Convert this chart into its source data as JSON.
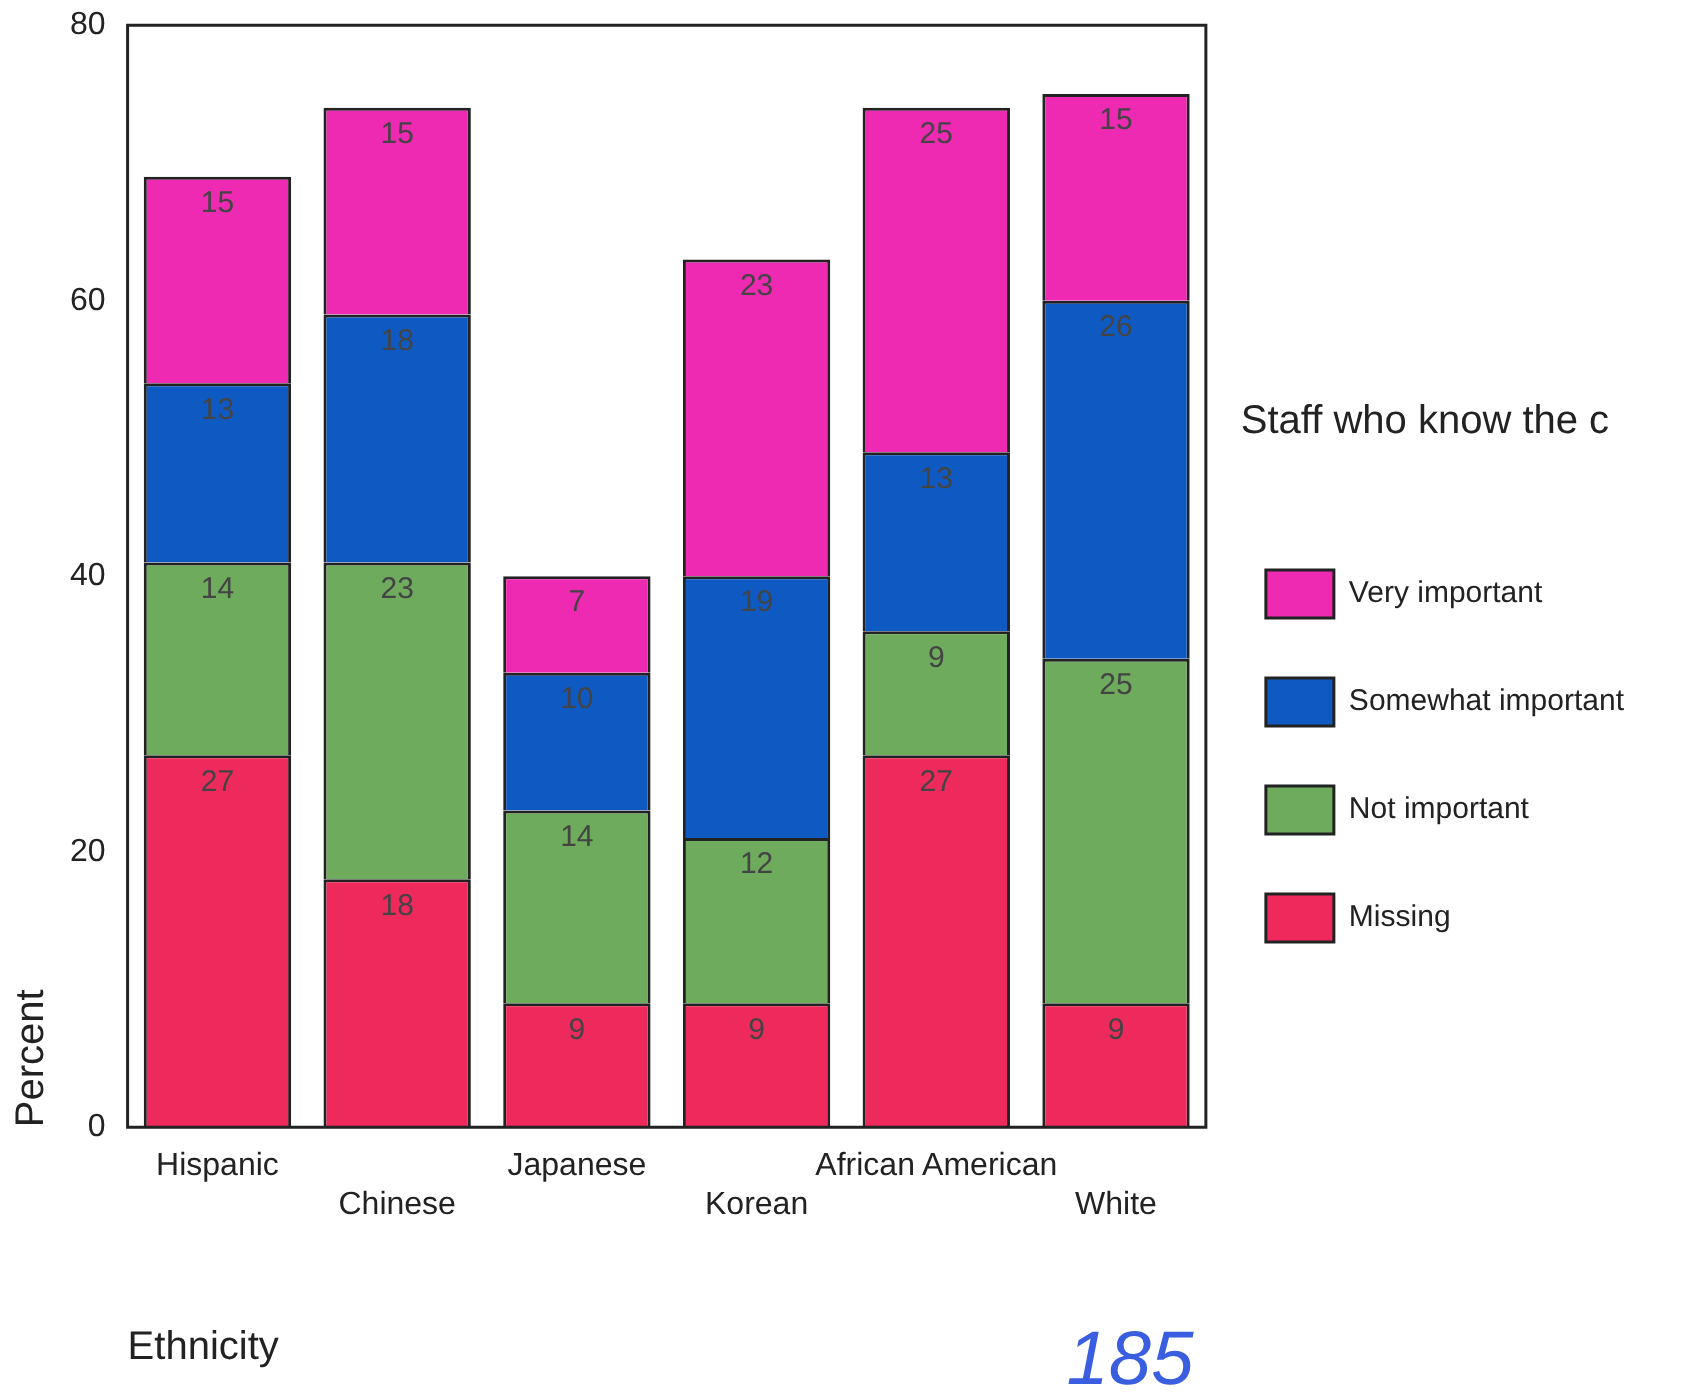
{
  "chart_data": {
    "type": "bar",
    "stacked": true,
    "xlabel": "Ethnicity",
    "ylabel": "Percent",
    "legend_title": "Staff who know the c",
    "legend": "right",
    "categories": [
      "Hispanic",
      "Chinese",
      "Japanese",
      "Korean",
      "African American",
      "White"
    ],
    "series": [
      {
        "name": "Missing",
        "color": "#ee2a5c",
        "values": [
          27,
          18,
          9,
          9,
          27,
          9
        ]
      },
      {
        "name": "Not important",
        "color": "#6eab5c",
        "values": [
          14,
          23,
          14,
          12,
          9,
          25
        ]
      },
      {
        "name": "Somewhat important",
        "color": "#0f5ac2",
        "values": [
          13,
          18,
          10,
          19,
          13,
          26
        ]
      },
      {
        "name": "Very important",
        "color": "#ee2ab2",
        "values": [
          15,
          15,
          7,
          23,
          25,
          15
        ]
      }
    ],
    "ylim": [
      0,
      80
    ],
    "yticks": [
      0,
      20,
      40,
      60,
      80
    ],
    "data_labels": true,
    "annotations": [
      "185"
    ]
  }
}
